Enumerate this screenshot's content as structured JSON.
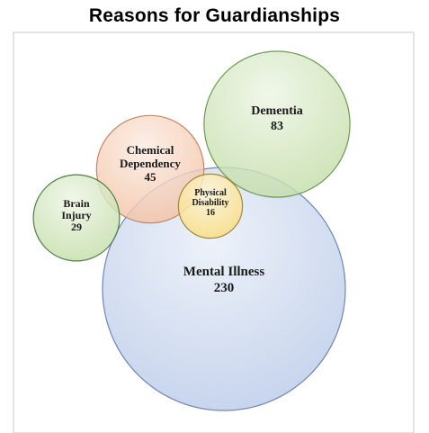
{
  "chart_data": {
    "type": "bubble",
    "title": "Reasons for Guardianships",
    "bubbles": [
      {
        "label_lines": [
          "Mental Illness"
        ],
        "value": 230,
        "color": "#b8c9e8"
      },
      {
        "label_lines": [
          "Dementia"
        ],
        "value": 83,
        "color": "#c2dca6"
      },
      {
        "label_lines": [
          "Chemical",
          "Dependency"
        ],
        "value": 45,
        "color": "#f3c0a0"
      },
      {
        "label_lines": [
          "Brain",
          "Injury"
        ],
        "value": 29,
        "color": "#c2dca6"
      },
      {
        "label_lines": [
          "Physical",
          "Disability"
        ],
        "value": 16,
        "color": "#fbdc78"
      }
    ],
    "grid": false,
    "legend": "none"
  }
}
